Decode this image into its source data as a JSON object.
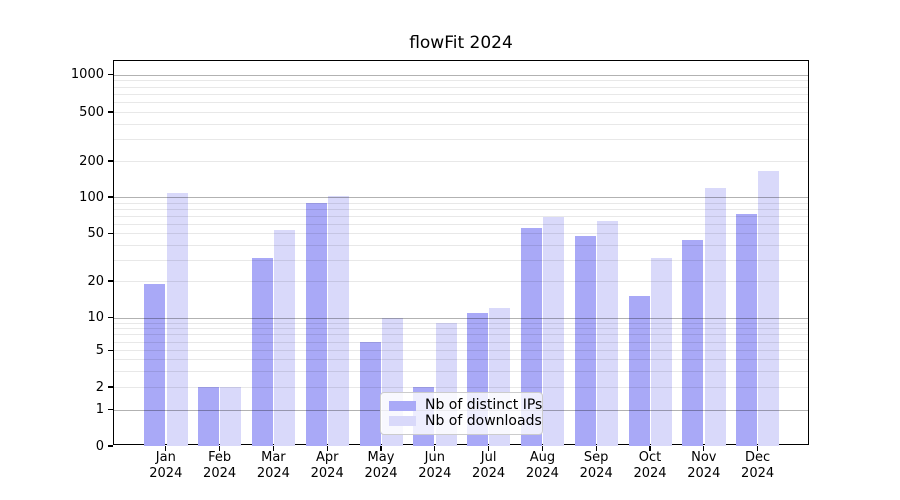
{
  "title": "flowFit 2024",
  "chart_data": {
    "type": "bar",
    "title": "flowFit 2024",
    "categories": [
      "Jan 2024",
      "Feb 2024",
      "Mar 2024",
      "Apr 2024",
      "May 2024",
      "Jun 2024",
      "Jul 2024",
      "Aug 2024",
      "Sep 2024",
      "Oct 2024",
      "Nov 2024",
      "Dec 2024"
    ],
    "series": [
      {
        "name": "Nb of distinct IPs",
        "color": "#a9a9f7",
        "values": [
          19,
          2,
          31,
          90,
          6,
          2,
          11,
          55,
          48,
          15,
          44,
          73
        ]
      },
      {
        "name": "Nb of downloads",
        "color": "#d9d9fa",
        "values": [
          107,
          2,
          53,
          101,
          10,
          9,
          12,
          68,
          63,
          31,
          120,
          165
        ]
      }
    ],
    "yscale": "log-with-zero",
    "yticks": [
      0,
      1,
      2,
      5,
      10,
      20,
      50,
      100,
      200,
      500,
      1000
    ],
    "ylim": [
      0,
      1300
    ],
    "xlabel": "",
    "ylabel": "",
    "grid": "horizontal-major-and-minor",
    "legend_position": "inside lower center"
  },
  "legend": {
    "items": [
      {
        "label": "Nb of distinct IPs",
        "color": "#a9a9f7"
      },
      {
        "label": "Nb of downloads",
        "color": "#d9d9fa"
      }
    ]
  },
  "colors": {
    "background": "#ffffff",
    "spine": "#000000",
    "grid_major": "#b3b3b3",
    "grid_minor": "#e8e8e8",
    "text": "#000000"
  }
}
